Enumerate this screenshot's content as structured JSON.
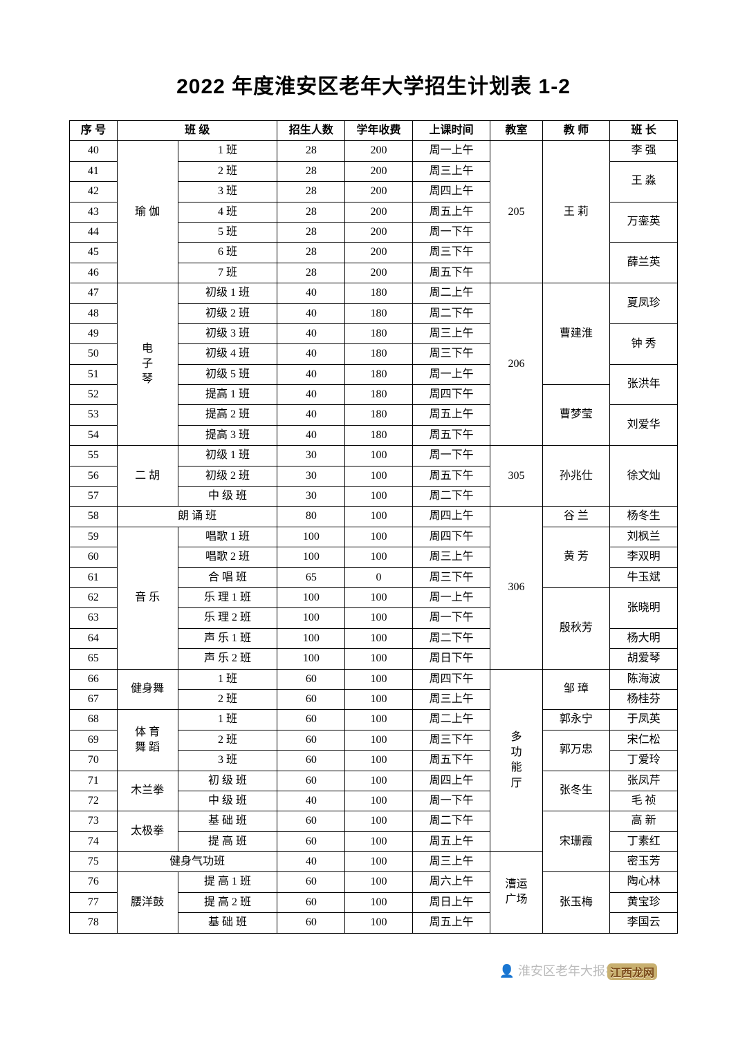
{
  "title": "2022 年度淮安区老年大学招生计划表 1-2",
  "headers": {
    "seq": "序 号",
    "class": "班    级",
    "capacity": "招生人数",
    "fee": "学年收费",
    "time": "上课时间",
    "room": "教室",
    "teacher": "教 师",
    "leader": "班 长"
  },
  "groups": [
    {
      "category": "瑜 伽",
      "room": "205",
      "teacher": "王  莉",
      "rows": [
        {
          "seq": "40",
          "sub": "1  班",
          "cap": "28",
          "fee": "200",
          "time": "周一上午"
        },
        {
          "seq": "41",
          "sub": "2  班",
          "cap": "28",
          "fee": "200",
          "time": "周三上午"
        },
        {
          "seq": "42",
          "sub": "3  班",
          "cap": "28",
          "fee": "200",
          "time": "周四上午"
        },
        {
          "seq": "43",
          "sub": "4  班",
          "cap": "28",
          "fee": "200",
          "time": "周五上午"
        },
        {
          "seq": "44",
          "sub": "5  班",
          "cap": "28",
          "fee": "200",
          "time": "周一下午"
        },
        {
          "seq": "45",
          "sub": "6  班",
          "cap": "28",
          "fee": "200",
          "time": "周三下午"
        },
        {
          "seq": "46",
          "sub": "7  班",
          "cap": "28",
          "fee": "200",
          "time": "周五下午"
        }
      ],
      "leaders": [
        {
          "name": "李  强",
          "span": 1
        },
        {
          "name": "王  淼",
          "span": 2
        },
        {
          "name": "万銮英",
          "span": 2
        },
        {
          "name": "薛兰英",
          "span": 2
        }
      ]
    },
    {
      "category": "电\n子\n琴",
      "room": "206",
      "rows": [
        {
          "seq": "47",
          "sub": "初级 1 班",
          "cap": "40",
          "fee": "180",
          "time": "周二上午"
        },
        {
          "seq": "48",
          "sub": "初级 2 班",
          "cap": "40",
          "fee": "180",
          "time": "周二下午"
        },
        {
          "seq": "49",
          "sub": "初级 3 班",
          "cap": "40",
          "fee": "180",
          "time": "周三上午"
        },
        {
          "seq": "50",
          "sub": "初级 4 班",
          "cap": "40",
          "fee": "180",
          "time": "周三下午"
        },
        {
          "seq": "51",
          "sub": "初级 5 班",
          "cap": "40",
          "fee": "180",
          "time": "周一上午"
        },
        {
          "seq": "52",
          "sub": "提高 1 班",
          "cap": "40",
          "fee": "180",
          "time": "周四下午"
        },
        {
          "seq": "53",
          "sub": "提高 2 班",
          "cap": "40",
          "fee": "180",
          "time": "周五上午"
        },
        {
          "seq": "54",
          "sub": "提高 3 班",
          "cap": "40",
          "fee": "180",
          "time": "周五下午"
        }
      ],
      "teachers": [
        {
          "name": "曹建淮",
          "span": 5
        },
        {
          "name": "曹梦莹",
          "span": 3
        }
      ],
      "leaders": [
        {
          "name": "夏凤珍",
          "span": 2
        },
        {
          "name": "钟  秀",
          "span": 2
        },
        {
          "name": "张洪年",
          "span": 2
        },
        {
          "name": "刘爱华",
          "span": 2
        }
      ]
    },
    {
      "category": "二 胡",
      "room": "305",
      "teacher": "孙兆仕",
      "leader": "徐文灿",
      "rows": [
        {
          "seq": "55",
          "sub": "初级 1 班",
          "cap": "30",
          "fee": "100",
          "time": "周一下午"
        },
        {
          "seq": "56",
          "sub": "初级 2 班",
          "cap": "30",
          "fee": "100",
          "time": "周五下午"
        },
        {
          "seq": "57",
          "sub": "中 级 班",
          "cap": "30",
          "fee": "100",
          "time": "周二下午"
        }
      ]
    }
  ],
  "langsong": {
    "seq": "58",
    "catsub": "朗  诵  班",
    "cap": "80",
    "fee": "100",
    "time": "周四上午",
    "teacher": "谷  兰",
    "leader": "杨冬生"
  },
  "yinyue": {
    "category": "音 乐",
    "room": "306",
    "rows": [
      {
        "seq": "59",
        "sub": "唱歌 1 班",
        "cap": "100",
        "fee": "100",
        "time": "周四下午",
        "leader": "刘枫兰"
      },
      {
        "seq": "60",
        "sub": "唱歌 2 班",
        "cap": "100",
        "fee": "100",
        "time": "周三上午",
        "leader": "李双明"
      },
      {
        "seq": "61",
        "sub": "合 唱 班",
        "cap": "65",
        "fee": "0",
        "time": "周三下午",
        "leader": "牛玉斌"
      },
      {
        "seq": "62",
        "sub": "乐 理 1 班",
        "cap": "100",
        "fee": "100",
        "time": "周一上午"
      },
      {
        "seq": "63",
        "sub": "乐 理 2 班",
        "cap": "100",
        "fee": "100",
        "time": "周一下午"
      },
      {
        "seq": "64",
        "sub": "声 乐 1 班",
        "cap": "100",
        "fee": "100",
        "time": "周二下午",
        "leader": "杨大明"
      },
      {
        "seq": "65",
        "sub": "声 乐 2 班",
        "cap": "100",
        "fee": "100",
        "time": "周日下午",
        "leader": "胡爱琴"
      }
    ],
    "teachers": [
      {
        "name": "黄  芳",
        "span": 3
      },
      {
        "name": "殷秋芳",
        "span": 4
      }
    ],
    "leader_zxm": "张晓明"
  },
  "dgnt": {
    "room": "多\n功\n能\n厅",
    "jianshen": {
      "category": "健身舞",
      "teacher": "邹  璋",
      "rows": [
        {
          "seq": "66",
          "sub": "1  班",
          "cap": "60",
          "fee": "100",
          "time": "周四下午",
          "leader": "陈海波"
        },
        {
          "seq": "67",
          "sub": "2  班",
          "cap": "60",
          "fee": "100",
          "time": "周三上午",
          "leader": "杨桂芬"
        }
      ]
    },
    "tiyu": {
      "category": "体 育\n舞 蹈",
      "rows": [
        {
          "seq": "68",
          "sub": "1  班",
          "cap": "60",
          "fee": "100",
          "time": "周二上午",
          "teacher": "郭永宁",
          "leader": "于凤英"
        },
        {
          "seq": "69",
          "sub": "2  班",
          "cap": "60",
          "fee": "100",
          "time": "周三下午",
          "leader": "宋仁松"
        },
        {
          "seq": "70",
          "sub": "3  班",
          "cap": "60",
          "fee": "100",
          "time": "周五下午",
          "leader": "丁爱玲"
        }
      ],
      "teacher2": "郭万忠"
    },
    "mulan": {
      "category": "木兰拳",
      "teacher": "张冬生",
      "rows": [
        {
          "seq": "71",
          "sub": "初 级 班",
          "cap": "60",
          "fee": "100",
          "time": "周四上午",
          "leader": "张凤芹"
        },
        {
          "seq": "72",
          "sub": "中 级 班",
          "cap": "40",
          "fee": "100",
          "time": "周一下午",
          "leader": "毛  祯"
        }
      ]
    },
    "taiji": {
      "category": "太极拳",
      "rows": [
        {
          "seq": "73",
          "sub": "基 础 班",
          "cap": "60",
          "fee": "100",
          "time": "周二下午",
          "leader": "高  新"
        },
        {
          "seq": "74",
          "sub": "提 高 班",
          "cap": "60",
          "fee": "100",
          "time": "周五上午",
          "leader": "丁素红"
        }
      ]
    }
  },
  "songshanxia": {
    "teacher": "宋珊霞"
  },
  "qigong": {
    "seq": "75",
    "catsub": "健身气功班",
    "cap": "40",
    "fee": "100",
    "time": "周三上午",
    "leader": "密玉芳"
  },
  "yaoyang": {
    "category": "腰洋鼓",
    "room": "漕运\n广场",
    "teacher": "张玉梅",
    "rows": [
      {
        "seq": "76",
        "sub": "提 高 1 班",
        "cap": "60",
        "fee": "100",
        "time": "周六上午",
        "leader": "陶心林"
      },
      {
        "seq": "77",
        "sub": "提 高 2 班",
        "cap": "60",
        "fee": "100",
        "time": "周日上午",
        "leader": "黄宝珍"
      },
      {
        "seq": "78",
        "sub": "基 础 班",
        "cap": "60",
        "fee": "100",
        "time": "周五上午",
        "leader": "李国云"
      }
    ]
  },
  "footer": {
    "src": "淮安区老年大报名",
    "wm": "江西龙网"
  }
}
